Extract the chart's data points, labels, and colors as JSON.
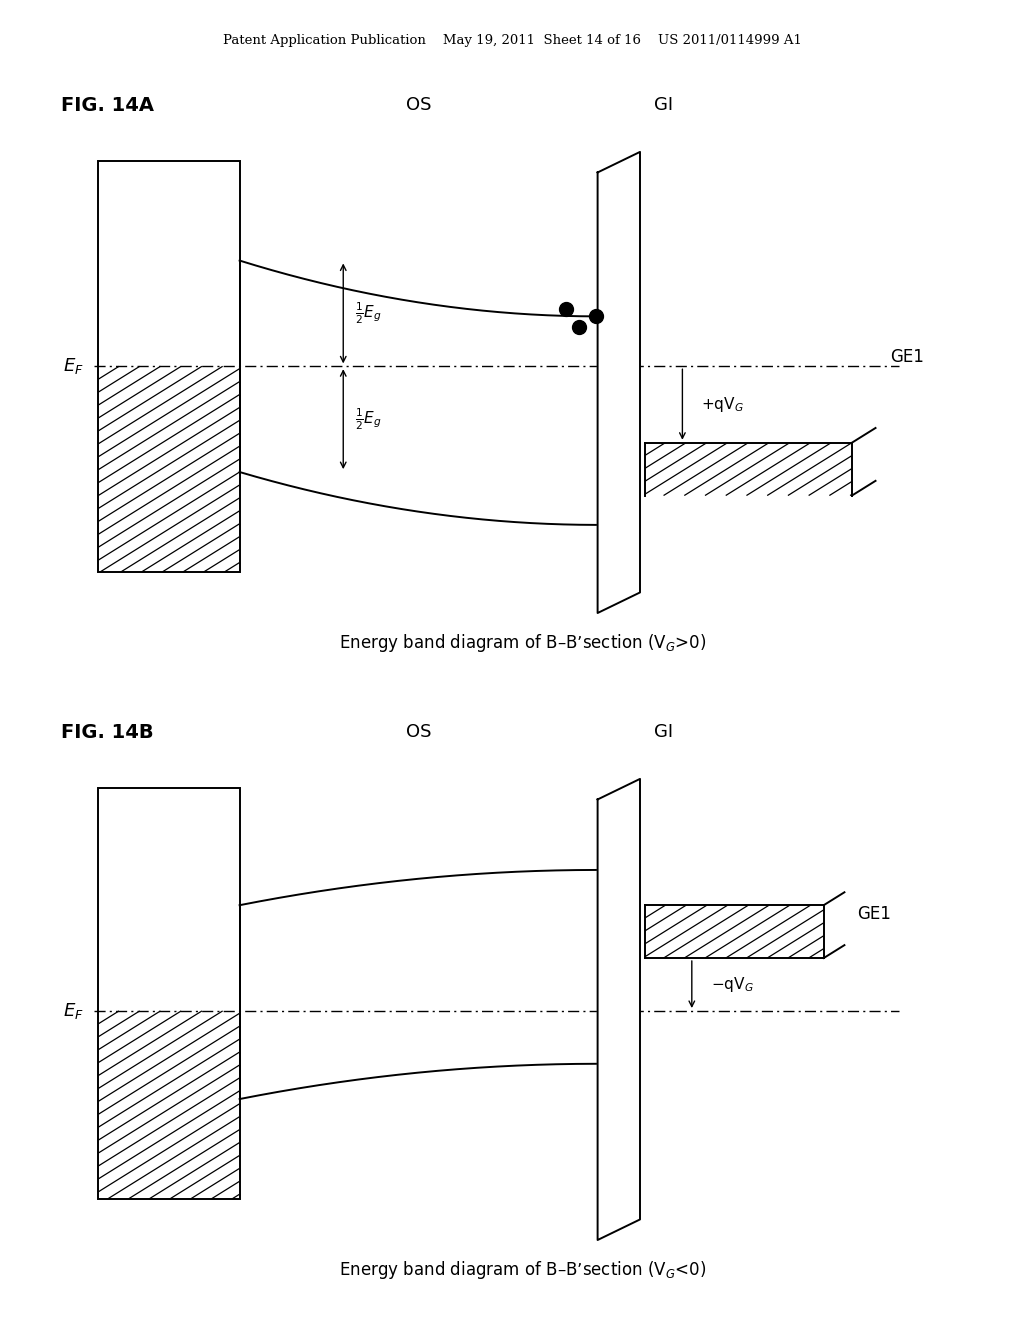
{
  "bg_color": "#ffffff",
  "header_text": "Patent Application Publication    May 19, 2011  Sheet 14 of 16    US 2011/0114999 A1",
  "fig14a_label": "FIG. 14A",
  "fig14b_label": "FIG. 14B",
  "label_OS": "OS",
  "label_GI": "GI",
  "label_GE1": "GE1",
  "line_color": "#000000"
}
